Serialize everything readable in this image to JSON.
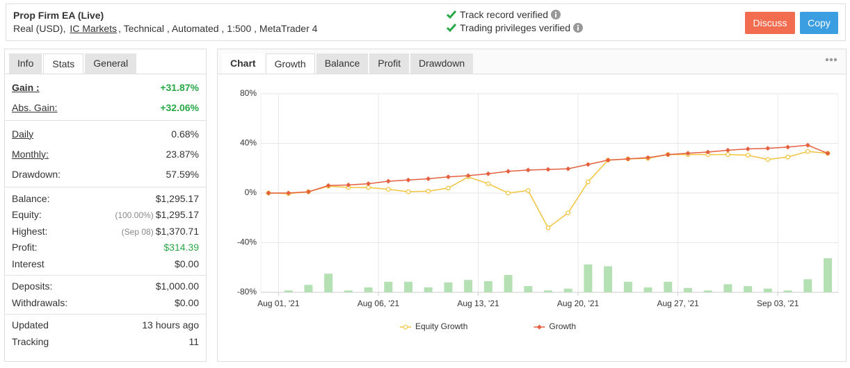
{
  "header": {
    "title": "Prop Firm EA (Live)",
    "account_prefix": "Real (USD),",
    "broker": "IC Markets",
    "account_suffix": ", Technical , Automated , 1:500 , MetaTrader 4",
    "verified": [
      "Track record verified",
      "Trading privileges verified"
    ],
    "buttons": [
      "Discuss",
      "Copy"
    ]
  },
  "left_tabs": {
    "items": [
      "Info",
      "Stats",
      "General"
    ],
    "active": 1
  },
  "stats": [
    [
      {
        "label": "Gain :",
        "value": "+31.87%",
        "color": "#28a745"
      },
      {
        "label": "Abs. Gain:",
        "value": "+32.06%",
        "color": "#28a745"
      }
    ],
    [
      {
        "label": "Daily",
        "value": "0.68%"
      },
      {
        "label": "Monthly:",
        "value": "23.87%"
      },
      {
        "label": "Drawdown:",
        "value": "57.59%"
      }
    ],
    [
      {
        "label": "Balance:",
        "value": "$1,295.17"
      },
      {
        "label": "Equity:",
        "note": "(100.00%)",
        "value": "$1,295.17"
      },
      {
        "label": "Highest:",
        "note": "(Sep 08)",
        "value": "$1,370.71"
      },
      {
        "label": "Profit:",
        "value": "$314.39",
        "color": "#28a745"
      },
      {
        "label": "Interest",
        "value": "$0.00"
      }
    ],
    [
      {
        "label": "Deposits:",
        "value": "$1,000.00"
      },
      {
        "label": "Withdrawals:",
        "value": "$0.00"
      }
    ],
    [
      {
        "label": "Updated",
        "value": "13 hours ago"
      },
      {
        "label": "Tracking",
        "value": "11"
      }
    ]
  ],
  "right_tabs": {
    "label": "Chart",
    "items": [
      "Growth",
      "Balance",
      "Profit",
      "Drawdown"
    ],
    "active": 0
  },
  "chart_data": {
    "type": "line",
    "categories": [
      "Aug 01, '21",
      null,
      null,
      null,
      null,
      "Aug 06, '21",
      null,
      null,
      null,
      null,
      "Aug 13, '21",
      null,
      null,
      null,
      null,
      "Aug 20, '21",
      null,
      null,
      null,
      null,
      "Aug 27, '21",
      null,
      null,
      null,
      null,
      "Sep 03, '21",
      null,
      null,
      null
    ],
    "series": [
      {
        "name": "Equity Growth",
        "color": "#f2c33c",
        "marker": "circle",
        "values": [
          0,
          -0.5,
          1,
          5.5,
          4.5,
          4.5,
          3,
          1,
          1.5,
          4,
          13,
          7.5,
          0,
          2,
          -28,
          -16,
          9,
          26.5,
          27.5,
          28,
          31,
          31,
          31,
          31,
          30.5,
          27,
          29,
          33.5,
          32
        ]
      },
      {
        "name": "Growth",
        "color": "#e4603f",
        "marker": "diamond",
        "values": [
          0,
          0,
          1,
          6,
          6.5,
          7.5,
          9.5,
          10.5,
          11.5,
          13,
          14,
          15.5,
          17.5,
          18.5,
          19,
          19.5,
          23,
          26.5,
          27.5,
          28.5,
          31,
          32,
          33,
          34.5,
          35.5,
          36,
          37,
          38.5,
          32
        ]
      },
      {
        "type": "bar",
        "axis": "y2",
        "color": "#b4e0b4",
        "values": [
          0,
          1.5,
          6,
          15,
          1.5,
          4,
          8.5,
          8.5,
          4,
          8,
          10,
          9,
          14,
          5,
          1.5,
          3,
          22.5,
          21,
          8.5,
          4,
          8.5,
          3.5,
          1.5,
          6.5,
          5,
          3,
          1.5,
          10.5,
          27.5
        ]
      }
    ],
    "ylim": [
      -80,
      80
    ],
    "yticks": [
      {
        "value": 80,
        "label": "80%"
      },
      {
        "value": 40,
        "label": "40%"
      },
      {
        "value": 0,
        "label": "0%"
      },
      {
        "value": -40,
        "label": "-40%"
      },
      {
        "value": -80,
        "label": "-80%"
      }
    ],
    "y2lim": [
      0,
      160
    ],
    "grid": true,
    "legend": "bottom"
  }
}
